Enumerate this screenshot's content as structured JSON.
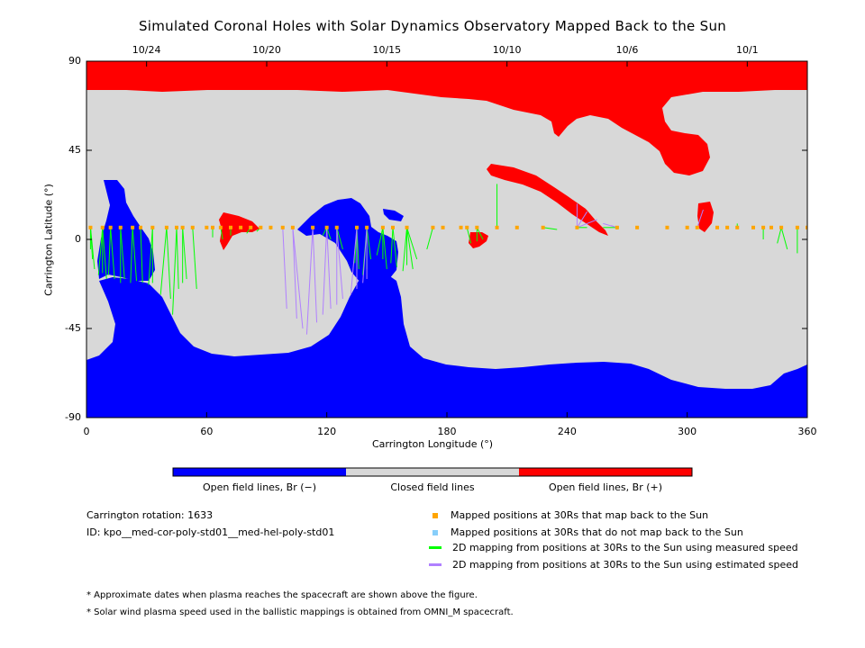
{
  "title": "Simulated Coronal Holes with Solar Dynamics Observatory Mapped Back to the Sun",
  "chart_data": {
    "type": "heatmap",
    "xlabel": "Carrington Longitude (°)",
    "ylabel": "Carrington Latitude (°)",
    "xlim": [
      0,
      360
    ],
    "ylim": [
      -90,
      90
    ],
    "x_ticks": [
      "0",
      "60",
      "120",
      "180",
      "240",
      "300",
      "360"
    ],
    "y_ticks": [
      "90",
      "45",
      "0",
      "-45",
      "-90"
    ],
    "top_axis_dates": [
      {
        "label": "10/24",
        "longitude": 30
      },
      {
        "label": "10/20",
        "longitude": 90
      },
      {
        "label": "10/15",
        "longitude": 150
      },
      {
        "label": "10/10",
        "longitude": 210
      },
      {
        "label": "10/6",
        "longitude": 270
      },
      {
        "label": "10/1",
        "longitude": 330
      }
    ],
    "colorbar": [
      {
        "label": "Open field lines, Br (−)",
        "color": "#0000ff"
      },
      {
        "label": "Closed field lines",
        "color": "#d8d8d8"
      },
      {
        "label": "Open field lines, Br (+)",
        "color": "#ff0000"
      }
    ],
    "mapped_point_latitude": 6,
    "mapped_longitudes": [
      2,
      8,
      12,
      17,
      23,
      27,
      33,
      40,
      45,
      48,
      53,
      60,
      63,
      67,
      72,
      77,
      82,
      87,
      92,
      98,
      103,
      113,
      120,
      125,
      135,
      140,
      148,
      153,
      160,
      173,
      178,
      187,
      190,
      195,
      205,
      215,
      228,
      245,
      265,
      275,
      290,
      300,
      305,
      315,
      320,
      325,
      333,
      338,
      342,
      347,
      355,
      360
    ],
    "green_mappings": [
      [
        2,
        -5
      ],
      [
        3,
        -10
      ],
      [
        4,
        -15
      ],
      [
        6,
        -18
      ],
      [
        8,
        -17
      ],
      [
        10,
        -20
      ],
      [
        11,
        -18
      ],
      [
        14,
        -20
      ],
      [
        17,
        -22
      ],
      [
        19,
        -20
      ],
      [
        22,
        -22
      ],
      [
        25,
        -21
      ],
      [
        28,
        -22
      ],
      [
        31,
        -23
      ],
      [
        33,
        -22
      ],
      [
        37,
        -28
      ],
      [
        42,
        -30
      ],
      [
        43,
        -38
      ],
      [
        46,
        -25
      ],
      [
        48,
        -22
      ],
      [
        50,
        -20
      ],
      [
        55,
        -25
      ],
      [
        63,
        1
      ],
      [
        68,
        0
      ],
      [
        72,
        2
      ],
      [
        80,
        3
      ],
      [
        85,
        4
      ],
      [
        92,
        5
      ],
      [
        118,
        2
      ],
      [
        122,
        0
      ],
      [
        125,
        -2
      ],
      [
        128,
        -5
      ],
      [
        134,
        -12
      ],
      [
        136,
        -15
      ],
      [
        138,
        -18
      ],
      [
        140,
        -15
      ],
      [
        142,
        -10
      ],
      [
        145,
        -8
      ],
      [
        148,
        -10
      ],
      [
        150,
        -15
      ],
      [
        152,
        -12
      ],
      [
        155,
        -14
      ],
      [
        158,
        -16
      ],
      [
        160,
        -13
      ],
      [
        163,
        -15
      ],
      [
        165,
        -10
      ],
      [
        170,
        -5
      ],
      [
        192,
        -2
      ],
      [
        195,
        -1
      ],
      [
        198,
        0
      ],
      [
        205,
        28
      ],
      [
        235,
        5
      ],
      [
        250,
        6
      ],
      [
        258,
        6
      ],
      [
        265,
        5
      ],
      [
        315,
        6
      ],
      [
        325,
        8
      ],
      [
        338,
        0
      ],
      [
        345,
        -2
      ],
      [
        350,
        -5
      ],
      [
        355,
        -7
      ],
      [
        360,
        -8
      ],
      [
        360,
        -10
      ]
    ],
    "violet_mappings": [
      [
        100,
        -35
      ],
      [
        105,
        -40
      ],
      [
        108,
        -45
      ],
      [
        110,
        -48
      ],
      [
        115,
        -42
      ],
      [
        118,
        -38
      ],
      [
        122,
        -35
      ],
      [
        125,
        -33
      ],
      [
        128,
        -30
      ],
      [
        132,
        -28
      ],
      [
        135,
        -25
      ],
      [
        138,
        -22
      ],
      [
        140,
        -20
      ],
      [
        245,
        18
      ],
      [
        250,
        14
      ],
      [
        255,
        10
      ],
      [
        258,
        8
      ],
      [
        262,
        7
      ],
      [
        308,
        15
      ]
    ]
  },
  "colorbar_labels": {
    "neg": "Open field lines, Br (−)",
    "closed": "Closed field lines",
    "pos": "Open field lines, Br (+)"
  },
  "info": {
    "rotation": "Carrington rotation: 1633",
    "id": "ID: kpo__med-cor-poly-std01__med-hel-poly-std01"
  },
  "legend": [
    {
      "label": "Mapped positions at 30Rs that map back to the Sun",
      "color": "#ffa500",
      "kind": "square"
    },
    {
      "label": "Mapped positions at 30Rs that do not map back to the Sun",
      "color": "#87cefa",
      "kind": "square"
    },
    {
      "label": "2D mapping from positions at 30Rs to the Sun using measured speed",
      "color": "#00ff00",
      "kind": "line"
    },
    {
      "label": "2D mapping from positions at 30Rs to the Sun using estimated speed",
      "color": "#b080ff",
      "kind": "line"
    }
  ],
  "footnotes": [
    "* Approximate dates when plasma reaches the spacecraft are shown above the figure.",
    "* Solar wind plasma speed used in the ballistic mappings is obtained from OMNI_M spacecraft."
  ]
}
